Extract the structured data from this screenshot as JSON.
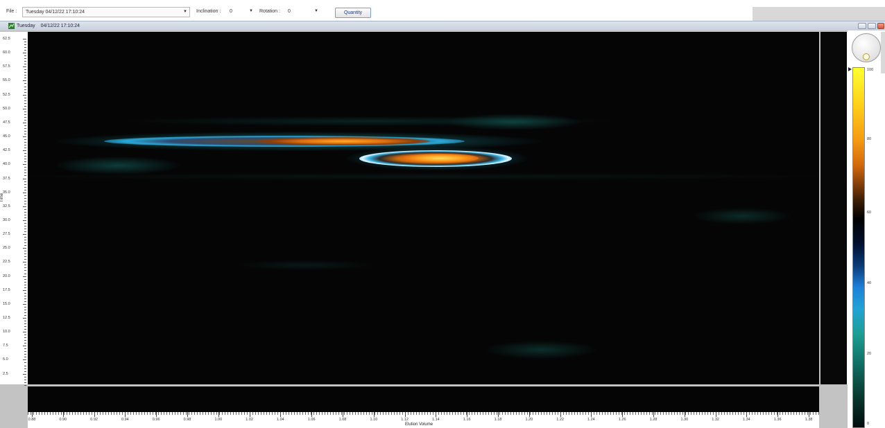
{
  "toolbar": {
    "file_label": "File :",
    "file_value": "Tuesday    04/12/22  17:10:24",
    "inclination_label": "Inclination :",
    "inclination_value": "0",
    "rotation_label": "Rotation :",
    "rotation_value": "0",
    "quantity_label": "Quantity"
  },
  "window": {
    "title_day": "Tuesday",
    "title_datetime": "04/12/22  17:10:24"
  },
  "plot": {
    "y_label": "Time",
    "x_label": "Elution Volume",
    "y_ticks": [
      "62.5",
      "60.0",
      "57.5",
      "55.0",
      "52.5",
      "50.0",
      "47.5",
      "45.0",
      "42.5",
      "40.0",
      "37.5",
      "35.0",
      "32.5",
      "30.0",
      "27.5",
      "25.0",
      "22.5",
      "20.0",
      "17.5",
      "15.0",
      "12.5",
      "10.0",
      "7.5",
      "5.0",
      "2.5"
    ],
    "x_ticks": [
      "0.88",
      "0.90",
      "0.92",
      "0.94",
      "0.96",
      "0.98",
      "1.00",
      "1.02",
      "1.04",
      "1.06",
      "1.08",
      "1.10",
      "1.12",
      "1.14",
      "1.16",
      "1.18",
      "1.20",
      "1.22",
      "1.24",
      "1.26",
      "1.28",
      "1.30",
      "1.32",
      "1.34",
      "1.36",
      "1.38"
    ]
  },
  "colorbar": {
    "labels": [
      "100",
      "80",
      "60",
      "40",
      "20",
      "0"
    ]
  },
  "colors": {
    "peak_core": "#ff9a1a",
    "peak_ring": "#2aa8d8",
    "background": "#050505"
  },
  "icons": {
    "window_icon": "app-icon",
    "dropdown": "chevron-down-icon",
    "minimize": "minimize-icon",
    "restore": "restore-icon",
    "close": "close-icon"
  }
}
